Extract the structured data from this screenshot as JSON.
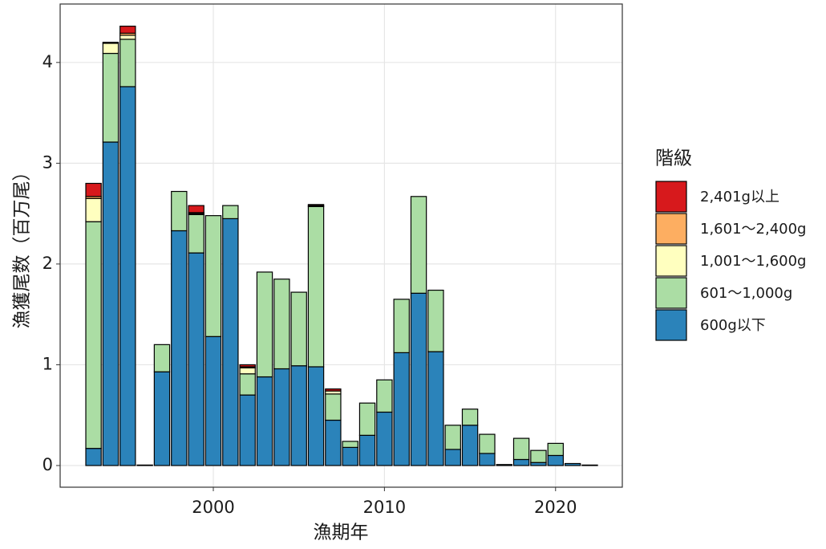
{
  "chart_data": {
    "type": "bar",
    "stacked": true,
    "x_label": "漁期年",
    "y_label": "漁獲尾数（百万尾）",
    "legend_title": "階級",
    "x": [
      1993,
      1994,
      1995,
      1996,
      1997,
      1998,
      1999,
      2000,
      2001,
      2002,
      2003,
      2004,
      2005,
      2006,
      2007,
      2008,
      2009,
      2010,
      2011,
      2012,
      2013,
      2014,
      2015,
      2016,
      2017,
      2018,
      2019,
      2020,
      2021,
      2022
    ],
    "series": [
      {
        "name": "600g以下",
        "color": "#2b83ba",
        "values": [
          0.17,
          3.21,
          3.76,
          0.005,
          0.93,
          2.33,
          2.11,
          1.28,
          2.45,
          0.7,
          0.88,
          0.96,
          0.99,
          0.98,
          0.45,
          0.18,
          0.3,
          0.53,
          1.12,
          1.71,
          1.13,
          0.16,
          0.4,
          0.12,
          0.01,
          0.06,
          0.03,
          0.1,
          0.02,
          0.005
        ]
      },
      {
        "name": "601～1,000g",
        "color": "#abdda4",
        "values": [
          2.25,
          0.88,
          0.47,
          0,
          0.27,
          0.39,
          0.38,
          1.2,
          0.13,
          0.21,
          1.04,
          0.89,
          0.73,
          1.59,
          0.26,
          0.06,
          0.32,
          0.32,
          0.53,
          0.96,
          0.61,
          0.24,
          0.16,
          0.19,
          0,
          0.21,
          0.12,
          0.12,
          0,
          0
        ]
      },
      {
        "name": "1,001～1,600g",
        "color": "#ffffbf",
        "values": [
          0.23,
          0.1,
          0.04,
          0,
          0,
          0,
          0.01,
          0,
          0,
          0.06,
          0,
          0,
          0,
          0.01,
          0.03,
          0,
          0,
          0,
          0,
          0,
          0,
          0,
          0,
          0,
          0,
          0,
          0,
          0,
          0,
          0
        ]
      },
      {
        "name": "1,601～2,400g",
        "color": "#fdae61",
        "values": [
          0.02,
          0.01,
          0.02,
          0,
          0,
          0,
          0.01,
          0,
          0,
          0.01,
          0,
          0,
          0,
          0,
          0,
          0,
          0,
          0,
          0,
          0,
          0,
          0,
          0,
          0,
          0,
          0,
          0,
          0,
          0,
          0
        ]
      },
      {
        "name": "2,401g以上",
        "color": "#d7191c",
        "values": [
          0.13,
          0,
          0.07,
          0,
          0,
          0,
          0.07,
          0,
          0,
          0.02,
          0,
          0,
          0,
          0.01,
          0.02,
          0,
          0,
          0,
          0,
          0,
          0,
          0,
          0,
          0,
          0,
          0,
          0,
          0,
          0,
          0
        ]
      }
    ],
    "xlim": [
      1991.05,
      2023.9
    ],
    "xticks": [
      2000,
      2010,
      2020
    ],
    "ylim": [
      -0.215,
      4.58
    ],
    "yticks": [
      0,
      1,
      2,
      3,
      4
    ],
    "grid": true
  }
}
